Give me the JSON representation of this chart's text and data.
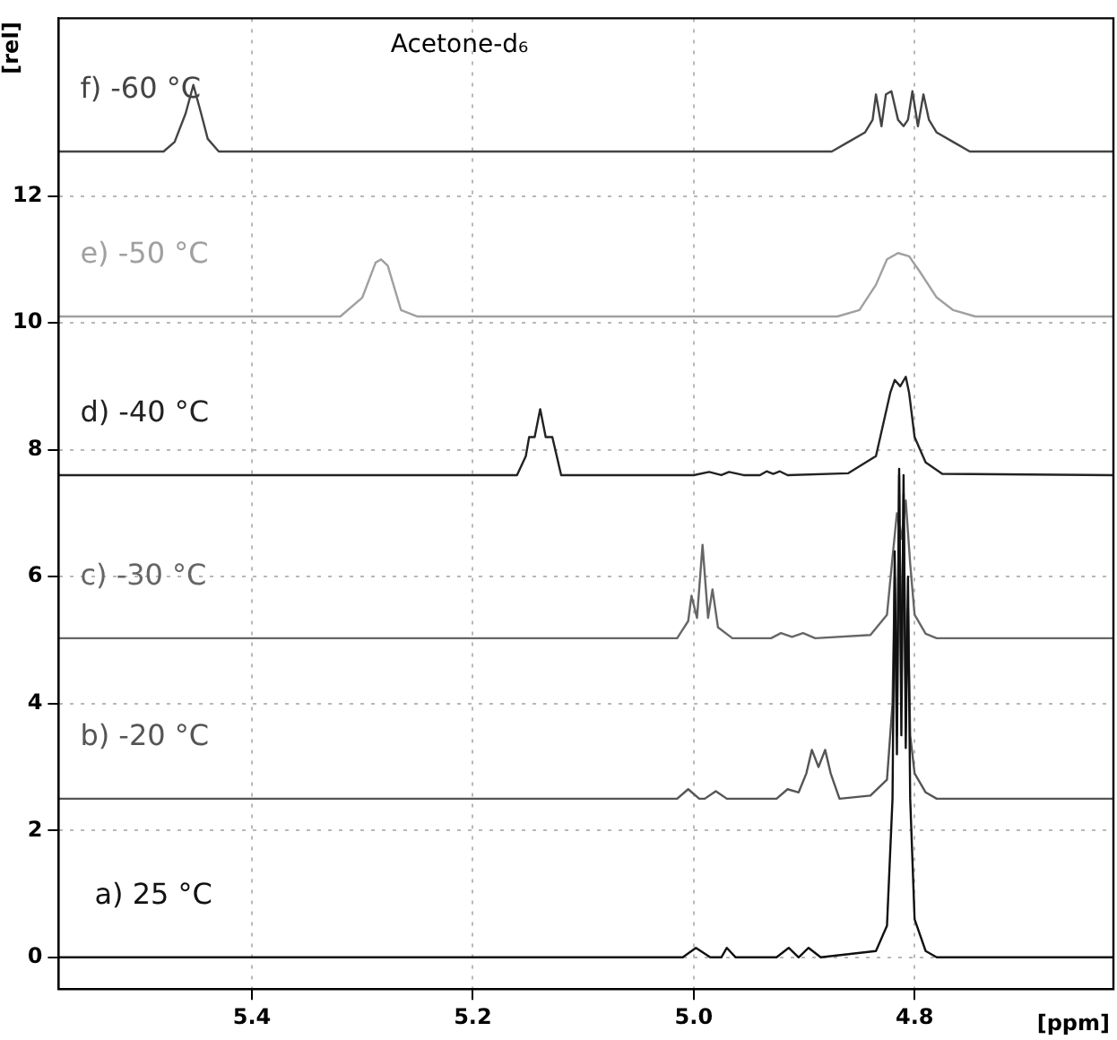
{
  "chart_data": {
    "type": "line",
    "xlabel": "[ppm]",
    "ylabel": "[rel]",
    "annotations": [
      "Acetone-d₆"
    ],
    "xlim": [
      5.575,
      4.62
    ],
    "xticks": [
      {
        "value": 5.4,
        "label": "5.4"
      },
      {
        "value": 5.2,
        "label": "5.2"
      },
      {
        "value": 5,
        "label": "5.0"
      },
      {
        "value": 4.8,
        "label": "4.8"
      }
    ],
    "ylim": [
      -0.5,
      14.8
    ],
    "yticks": [
      0,
      2,
      4,
      6,
      8,
      10,
      12
    ],
    "grid": true,
    "legend": false,
    "marker": "none",
    "line_style": "solid",
    "series": [
      {
        "name": "a) 25 °C",
        "color": "#111111",
        "x": [
          5.575,
          5.01,
          4.998,
          4.985,
          4.975,
          4.97,
          4.962,
          4.925,
          4.914,
          4.905,
          4.896,
          4.885,
          4.835,
          4.825,
          4.82,
          4.818,
          4.816,
          4.814,
          4.812,
          4.81,
          4.808,
          4.806,
          4.804,
          4.8,
          4.79,
          4.78,
          4.62
        ],
        "values": [
          0,
          0,
          0.15,
          0,
          0,
          0.15,
          0,
          0,
          0.15,
          0,
          0.15,
          0,
          0.1,
          0.5,
          2.5,
          6.4,
          3.2,
          7.7,
          3.5,
          7.6,
          3.3,
          6.0,
          2.5,
          0.6,
          0.1,
          0,
          0
        ]
      },
      {
        "name": "b) -20 °C",
        "color": "#555555",
        "x": [
          5.575,
          5.015,
          5.005,
          4.995,
          4.99,
          4.98,
          4.97,
          4.925,
          4.915,
          4.905,
          4.898,
          4.893,
          4.887,
          4.881,
          4.876,
          4.868,
          4.84,
          4.825,
          4.82,
          4.818,
          4.816,
          4.814,
          4.812,
          4.81,
          4.808,
          4.806,
          4.804,
          4.8,
          4.79,
          4.78,
          4.62
        ],
        "values": [
          2.5,
          2.5,
          2.65,
          2.5,
          2.5,
          2.62,
          2.5,
          2.5,
          2.65,
          2.6,
          2.9,
          3.27,
          3.0,
          3.27,
          2.9,
          2.5,
          2.55,
          2.8,
          4.0,
          6.0,
          3.5,
          7.6,
          4.0,
          7.3,
          4.0,
          5.5,
          3.5,
          2.9,
          2.6,
          2.5,
          2.5
        ]
      },
      {
        "name": "c) -30 °C",
        "color": "#666666",
        "x": [
          5.575,
          5.015,
          5.005,
          5.002,
          4.997,
          4.992,
          4.987,
          4.983,
          4.978,
          4.965,
          4.93,
          4.921,
          4.911,
          4.901,
          4.89,
          4.84,
          4.825,
          4.82,
          4.816,
          4.812,
          4.808,
          4.804,
          4.8,
          4.79,
          4.78,
          4.62
        ],
        "values": [
          5.03,
          5.03,
          5.3,
          5.7,
          5.35,
          6.5,
          5.35,
          5.8,
          5.2,
          5.03,
          5.03,
          5.11,
          5.05,
          5.11,
          5.03,
          5.08,
          5.4,
          6.3,
          7.0,
          6.6,
          7.2,
          6.2,
          5.4,
          5.1,
          5.03,
          5.03
        ]
      },
      {
        "name": "d) -40 °C",
        "color": "#222222",
        "x": [
          5.575,
          5.16,
          5.152,
          5.149,
          5.144,
          5.139,
          5.134,
          5.128,
          5.12,
          5.0,
          4.986,
          4.975,
          4.968,
          4.955,
          4.94,
          4.934,
          4.928,
          4.922,
          4.915,
          4.86,
          4.835,
          4.822,
          4.818,
          4.813,
          4.808,
          4.805,
          4.8,
          4.79,
          4.775,
          4.62
        ],
        "values": [
          7.6,
          7.6,
          7.9,
          8.2,
          8.2,
          8.64,
          8.2,
          8.2,
          7.6,
          7.6,
          7.65,
          7.6,
          7.65,
          7.6,
          7.6,
          7.66,
          7.62,
          7.66,
          7.6,
          7.63,
          7.9,
          8.9,
          9.1,
          9.0,
          9.15,
          8.9,
          8.2,
          7.8,
          7.62,
          7.6
        ]
      },
      {
        "name": "e) -50 °C",
        "color": "#a0a0a0",
        "x": [
          5.575,
          5.32,
          5.3,
          5.288,
          5.283,
          5.277,
          5.265,
          5.25,
          4.87,
          4.85,
          4.835,
          4.825,
          4.815,
          4.805,
          4.795,
          4.78,
          4.765,
          4.745,
          4.62
        ],
        "values": [
          10.1,
          10.1,
          10.4,
          10.95,
          11.0,
          10.9,
          10.2,
          10.1,
          10.1,
          10.2,
          10.6,
          11.0,
          11.1,
          11.05,
          10.8,
          10.4,
          10.2,
          10.1,
          10.1
        ]
      },
      {
        "name": "f) -60 °C",
        "color": "#444444",
        "x": [
          5.575,
          5.48,
          5.47,
          5.46,
          5.453,
          5.446,
          5.44,
          5.43,
          4.875,
          4.86,
          4.845,
          4.838,
          4.835,
          4.83,
          4.826,
          4.821,
          4.815,
          4.81,
          4.806,
          4.802,
          4.797,
          4.792,
          4.787,
          4.78,
          4.765,
          4.75,
          4.62
        ],
        "values": [
          12.7,
          12.7,
          12.85,
          13.3,
          13.75,
          13.3,
          12.9,
          12.7,
          12.7,
          12.85,
          13.0,
          13.2,
          13.6,
          13.1,
          13.6,
          13.65,
          13.2,
          13.1,
          13.2,
          13.65,
          13.1,
          13.6,
          13.2,
          13.0,
          12.85,
          12.7,
          12.7
        ]
      }
    ]
  }
}
